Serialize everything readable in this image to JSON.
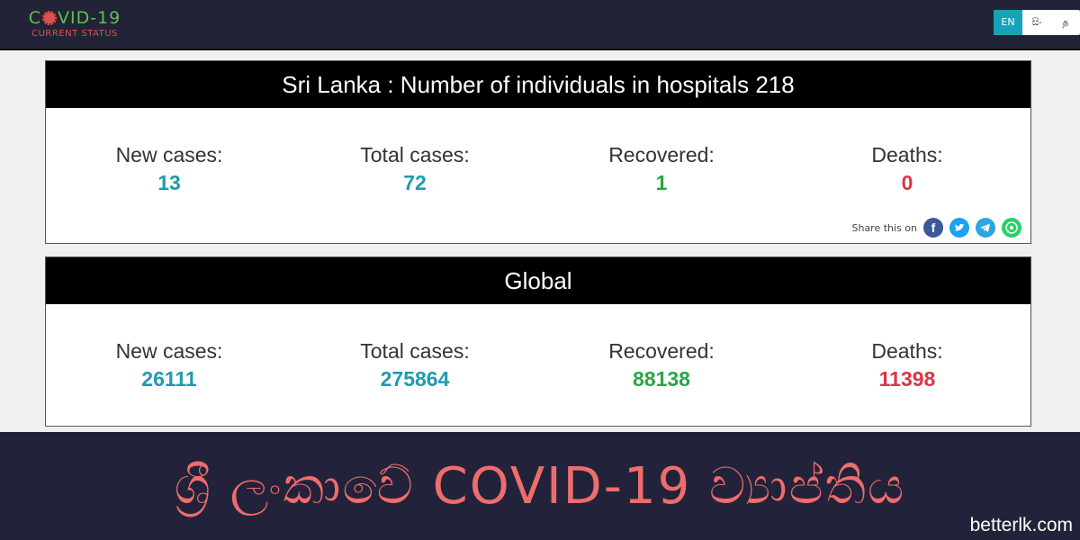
{
  "header": {
    "brand_title_pre": "C",
    "brand_title_post": "VID-19",
    "brand_subtitle": "CURRENT STATUS",
    "languages": [
      "EN",
      "සිං",
      "த"
    ],
    "active_language": "EN"
  },
  "local": {
    "title": "Sri Lanka : Number of individuals in hospitals 218",
    "new_cases_label": "New cases:",
    "new_cases": "13",
    "total_cases_label": "Total cases:",
    "total_cases": "72",
    "recovered_label": "Recovered:",
    "recovered": "1",
    "deaths_label": "Deaths:",
    "deaths": "0",
    "share_label": "Share this on"
  },
  "global": {
    "title": "Global",
    "new_cases_label": "New cases:",
    "new_cases": "26111",
    "total_cases_label": "Total cases:",
    "total_cases": "275864",
    "recovered_label": "Recovered:",
    "recovered": "88138",
    "deaths_label": "Deaths:",
    "deaths": "11398"
  },
  "banner": {
    "title": "ශ්‍රී ලංකාවේ COVID-19 ව්‍යාප්තිය",
    "watermark": "betterlk.com"
  },
  "share_icons": [
    "facebook-icon",
    "twitter-icon",
    "telegram-icon",
    "whatsapp-icon"
  ],
  "colors": {
    "navbar": "#222336",
    "accent": "#17a2b8",
    "value_blue": "#1e9bb0",
    "value_green": "#28a745",
    "value_red": "#dc3545",
    "banner_text": "#ef6c6c"
  }
}
